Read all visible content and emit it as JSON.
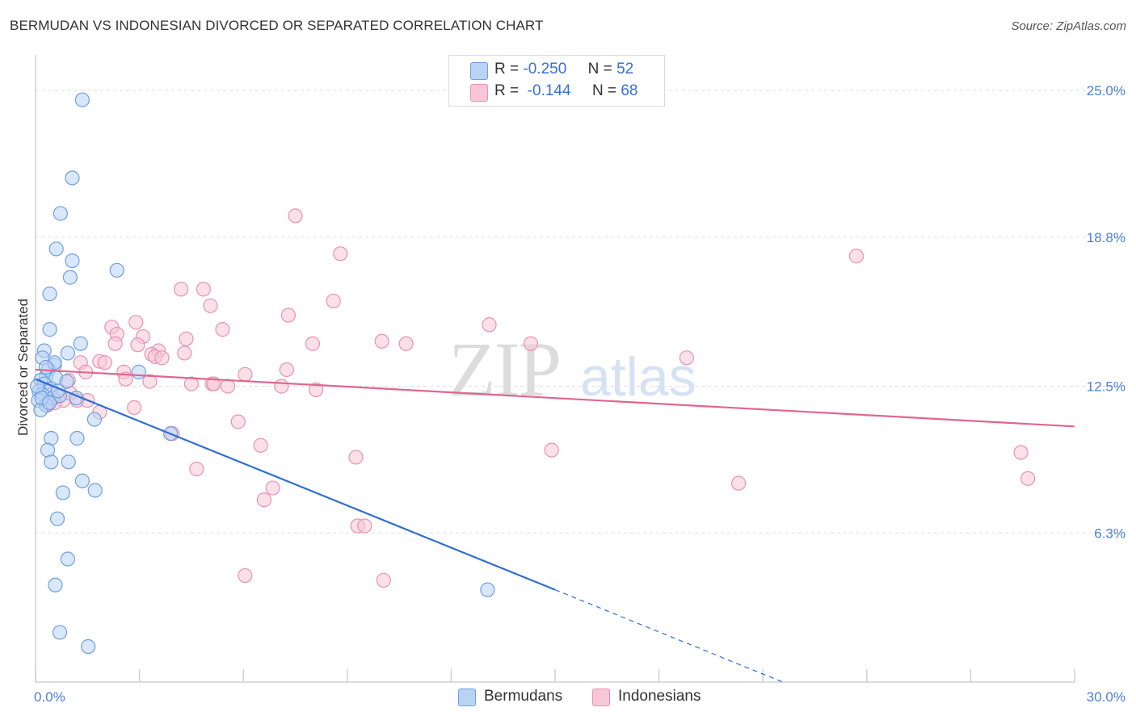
{
  "header": {
    "title": "BERMUDAN VS INDONESIAN DIVORCED OR SEPARATED CORRELATION CHART",
    "source": "Source: ZipAtlas.com"
  },
  "legend": {
    "r_label": "R =",
    "n_label": "N =",
    "series": [
      {
        "r": "-0.250",
        "n": "52"
      },
      {
        "r": "-0.144",
        "n": "68"
      }
    ]
  },
  "bottom_legend": {
    "bermudans": "Bermudans",
    "indonesians": "Indonesians"
  },
  "watermark": {
    "zip": "ZIP",
    "atlas": "atlas"
  },
  "colors": {
    "bermudan_fill": "#b9d3f5",
    "bermudan_stroke": "#6f9fe0",
    "bermudan_line": "#2f6fd0",
    "indonesian_fill": "#f8c6d6",
    "indonesian_stroke": "#e892b0",
    "indonesian_line": "#e0668f",
    "tick_text": "#4a7fd6"
  },
  "chart_data": {
    "type": "scatter",
    "title": "BERMUDAN VS INDONESIAN DIVORCED OR SEPARATED CORRELATION CHART",
    "xlabel": "",
    "ylabel": "Divorced or Separated",
    "xlim": [
      0,
      30
    ],
    "ylim": [
      0,
      26.5
    ],
    "x_tick_labels": [
      "0.0%",
      "30.0%"
    ],
    "y_ticks": [
      {
        "value": 25.0,
        "label": "25.0%"
      },
      {
        "value": 18.8,
        "label": "18.8%"
      },
      {
        "value": 12.5,
        "label": "12.5%"
      },
      {
        "value": 6.3,
        "label": "6.3%"
      }
    ],
    "series": [
      {
        "name": "Bermudans",
        "r": -0.25,
        "n": 52,
        "trend": {
          "x0": 0,
          "y0": 12.8,
          "x1": 15,
          "y1": 3.9,
          "dashed_to_x": 30
        },
        "points": [
          [
            1.35,
            24.6
          ],
          [
            1.06,
            21.3
          ],
          [
            0.72,
            19.8
          ],
          [
            0.6,
            18.3
          ],
          [
            1.06,
            17.8
          ],
          [
            2.35,
            17.4
          ],
          [
            1.0,
            17.1
          ],
          [
            0.41,
            16.4
          ],
          [
            0.41,
            14.9
          ],
          [
            1.3,
            14.3
          ],
          [
            0.25,
            14.0
          ],
          [
            0.93,
            13.9
          ],
          [
            0.2,
            13.7
          ],
          [
            0.55,
            13.4
          ],
          [
            0.37,
            13.2
          ],
          [
            0.3,
            12.9
          ],
          [
            0.59,
            12.85
          ],
          [
            0.15,
            12.75
          ],
          [
            0.25,
            12.6
          ],
          [
            0.45,
            12.4
          ],
          [
            0.1,
            12.3
          ],
          [
            0.2,
            12.15
          ],
          [
            0.5,
            12.0
          ],
          [
            0.7,
            12.1
          ],
          [
            0.08,
            11.9
          ],
          [
            0.3,
            11.7
          ],
          [
            0.15,
            11.5
          ],
          [
            2.98,
            13.1
          ],
          [
            1.18,
            12.0
          ],
          [
            1.7,
            11.1
          ],
          [
            0.45,
            10.3
          ],
          [
            1.2,
            10.3
          ],
          [
            0.35,
            9.8
          ],
          [
            0.95,
            9.3
          ],
          [
            0.45,
            9.3
          ],
          [
            1.35,
            8.5
          ],
          [
            1.72,
            8.1
          ],
          [
            0.79,
            8.0
          ],
          [
            0.63,
            6.9
          ],
          [
            0.93,
            5.2
          ],
          [
            0.57,
            4.1
          ],
          [
            0.7,
            2.1
          ],
          [
            1.52,
            1.5
          ],
          [
            3.9,
            10.5
          ],
          [
            13.05,
            3.9
          ],
          [
            0.05,
            12.5
          ],
          [
            0.9,
            12.7
          ],
          [
            0.55,
            13.5
          ],
          [
            0.3,
            13.3
          ],
          [
            0.18,
            12.0
          ],
          [
            0.65,
            12.3
          ],
          [
            0.4,
            11.8
          ]
        ]
      },
      {
        "name": "Indonesians",
        "r": -0.144,
        "n": 68,
        "trend": {
          "x0": 0,
          "y0": 13.2,
          "x1": 30,
          "y1": 10.8
        },
        "points": [
          [
            7.5,
            19.7
          ],
          [
            8.8,
            18.1
          ],
          [
            23.7,
            18.0
          ],
          [
            4.2,
            16.6
          ],
          [
            4.85,
            16.6
          ],
          [
            8.6,
            16.1
          ],
          [
            5.05,
            15.9
          ],
          [
            7.3,
            15.5
          ],
          [
            13.1,
            15.1
          ],
          [
            2.9,
            15.2
          ],
          [
            2.2,
            15.0
          ],
          [
            5.4,
            14.9
          ],
          [
            3.1,
            14.6
          ],
          [
            2.35,
            14.7
          ],
          [
            4.35,
            14.5
          ],
          [
            10.0,
            14.4
          ],
          [
            2.3,
            14.3
          ],
          [
            2.95,
            14.25
          ],
          [
            8.0,
            14.3
          ],
          [
            10.7,
            14.3
          ],
          [
            14.3,
            14.3
          ],
          [
            3.55,
            14.0
          ],
          [
            3.35,
            13.85
          ],
          [
            4.3,
            13.9
          ],
          [
            3.45,
            13.75
          ],
          [
            3.65,
            13.7
          ],
          [
            1.85,
            13.55
          ],
          [
            1.3,
            13.5
          ],
          [
            2.0,
            13.5
          ],
          [
            18.8,
            13.7
          ],
          [
            1.45,
            13.1
          ],
          [
            2.55,
            13.1
          ],
          [
            6.05,
            13.0
          ],
          [
            7.25,
            13.2
          ],
          [
            3.3,
            12.7
          ],
          [
            4.5,
            12.6
          ],
          [
            5.1,
            12.6
          ],
          [
            5.55,
            12.5
          ],
          [
            5.15,
            12.6
          ],
          [
            7.1,
            12.5
          ],
          [
            8.1,
            12.35
          ],
          [
            0.95,
            12.75
          ],
          [
            0.65,
            12.1
          ],
          [
            0.8,
            11.9
          ],
          [
            1.2,
            11.9
          ],
          [
            1.5,
            11.9
          ],
          [
            0.55,
            11.8
          ],
          [
            0.35,
            11.7
          ],
          [
            1.85,
            11.4
          ],
          [
            2.85,
            11.6
          ],
          [
            5.85,
            11.0
          ],
          [
            3.95,
            10.5
          ],
          [
            6.5,
            10.0
          ],
          [
            9.25,
            9.5
          ],
          [
            14.9,
            9.8
          ],
          [
            4.65,
            9.0
          ],
          [
            6.85,
            8.2
          ],
          [
            6.6,
            7.7
          ],
          [
            20.3,
            8.4
          ],
          [
            28.45,
            9.7
          ],
          [
            28.65,
            8.6
          ],
          [
            9.3,
            6.6
          ],
          [
            9.5,
            6.6
          ],
          [
            6.05,
            4.5
          ],
          [
            10.05,
            4.3
          ],
          [
            1.0,
            12.2
          ],
          [
            0.25,
            12.4
          ],
          [
            2.6,
            12.8
          ]
        ]
      }
    ]
  }
}
